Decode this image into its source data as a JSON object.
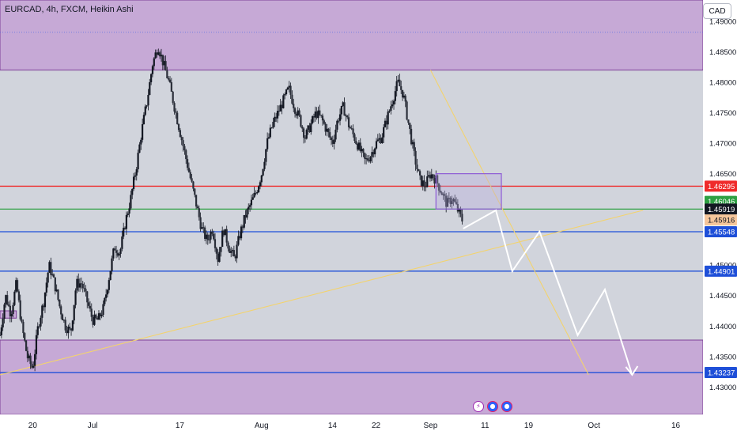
{
  "header": {
    "title": "EURCAD, 4h, FXCM, Heikin Ashi",
    "currency": "CAD"
  },
  "colors": {
    "up": "#131722",
    "down": "#131722",
    "zone_fill": "#c6a9d6",
    "zone_border": "#7e3f98",
    "background": "#d1d4dc",
    "red_line": "#ef2b2b",
    "green_line": "#2ea043",
    "blue_line": "#1e4fd8",
    "trend_line": "#f3d36e",
    "arrow": "#ffffff"
  },
  "event_icons": [
    {
      "name": "lightning-icon",
      "glyph": "⚡"
    },
    {
      "name": "flag-icon",
      "glyph": "●"
    },
    {
      "name": "flag-icon",
      "glyph": "●"
    }
  ],
  "chart_data": {
    "type": "candlestick",
    "title": "EURCAD, 4h, FXCM, Heikin Ashi",
    "ylim": [
      1.4255,
      1.4935
    ],
    "y_ticks": [
      1.43,
      1.435,
      1.44,
      1.445,
      1.45,
      1.455,
      1.46,
      1.465,
      1.47,
      1.475,
      1.48,
      1.485,
      1.49
    ],
    "y_tick_labels": [
      "1.43000",
      "1.43500",
      "1.44000",
      "1.44500",
      "1.45000",
      "1.45500",
      "1.46000",
      "1.46500",
      "1.47000",
      "1.47500",
      "1.48000",
      "1.48500",
      "1.49000"
    ],
    "x_ticks": [
      {
        "label": "20",
        "date": "2023-06-20"
      },
      {
        "label": "Jul",
        "date": "2023-07-01"
      },
      {
        "label": "17",
        "date": "2023-07-17"
      },
      {
        "label": "Aug",
        "date": "2023-08-01"
      },
      {
        "label": "14",
        "date": "2023-08-14"
      },
      {
        "label": "22",
        "date": "2023-08-22"
      },
      {
        "label": "Sep",
        "date": "2023-09-01"
      },
      {
        "label": "11",
        "date": "2023-09-11"
      },
      {
        "label": "19",
        "date": "2023-09-19"
      },
      {
        "label": "Oct",
        "date": "2023-10-01"
      },
      {
        "label": "16",
        "date": "2023-10-16"
      }
    ],
    "price_path": [
      [
        "2023-06-14",
        1.4385
      ],
      [
        "2023-06-15",
        1.445
      ],
      [
        "2023-06-16",
        1.442
      ],
      [
        "2023-06-17",
        1.447
      ],
      [
        "2023-06-18",
        1.44
      ],
      [
        "2023-06-19",
        1.435
      ],
      [
        "2023-06-20",
        1.433
      ],
      [
        "2023-06-21",
        1.44
      ],
      [
        "2023-06-22",
        1.444
      ],
      [
        "2023-06-23",
        1.45
      ],
      [
        "2023-06-24",
        1.447
      ],
      [
        "2023-06-25",
        1.443
      ],
      [
        "2023-06-26",
        1.44
      ],
      [
        "2023-06-27",
        1.439
      ],
      [
        "2023-06-28",
        1.447
      ],
      [
        "2023-06-29",
        1.447
      ],
      [
        "2023-06-30",
        1.444
      ],
      [
        "2023-07-01",
        1.441
      ],
      [
        "2023-07-02",
        1.441
      ],
      [
        "2023-07-03",
        1.443
      ],
      [
        "2023-07-04",
        1.448
      ],
      [
        "2023-07-05",
        1.453
      ],
      [
        "2023-07-06",
        1.452
      ],
      [
        "2023-07-07",
        1.457
      ],
      [
        "2023-07-08",
        1.461
      ],
      [
        "2023-07-09",
        1.466
      ],
      [
        "2023-07-10",
        1.472
      ],
      [
        "2023-07-11",
        1.477
      ],
      [
        "2023-07-12",
        1.483
      ],
      [
        "2023-07-13",
        1.486
      ],
      [
        "2023-07-14",
        1.483
      ],
      [
        "2023-07-15",
        1.48
      ],
      [
        "2023-07-16",
        1.476
      ],
      [
        "2023-07-17",
        1.472
      ],
      [
        "2023-07-18",
        1.468
      ],
      [
        "2023-07-19",
        1.464
      ],
      [
        "2023-07-20",
        1.46
      ],
      [
        "2023-07-21",
        1.456
      ],
      [
        "2023-07-22",
        1.454
      ],
      [
        "2023-07-23",
        1.456
      ],
      [
        "2023-07-24",
        1.451
      ],
      [
        "2023-07-25",
        1.456
      ],
      [
        "2023-07-26",
        1.453
      ],
      [
        "2023-07-27",
        1.451
      ],
      [
        "2023-07-28",
        1.455
      ],
      [
        "2023-07-29",
        1.458
      ],
      [
        "2023-07-30",
        1.46
      ],
      [
        "2023-07-31",
        1.462
      ],
      [
        "2023-08-01",
        1.465
      ],
      [
        "2023-08-02",
        1.47
      ],
      [
        "2023-08-03",
        1.473
      ],
      [
        "2023-08-04",
        1.475
      ],
      [
        "2023-08-05",
        1.477
      ],
      [
        "2023-08-06",
        1.479
      ],
      [
        "2023-08-07",
        1.476
      ],
      [
        "2023-08-08",
        1.474
      ],
      [
        "2023-08-09",
        1.471
      ],
      [
        "2023-08-10",
        1.473
      ],
      [
        "2023-08-11",
        1.475
      ],
      [
        "2023-08-12",
        1.474
      ],
      [
        "2023-08-13",
        1.472
      ],
      [
        "2023-08-14",
        1.47
      ],
      [
        "2023-08-15",
        1.474
      ],
      [
        "2023-08-16",
        1.476
      ],
      [
        "2023-08-17",
        1.473
      ],
      [
        "2023-08-18",
        1.471
      ],
      [
        "2023-08-19",
        1.469
      ],
      [
        "2023-08-20",
        1.467
      ],
      [
        "2023-08-21",
        1.468
      ],
      [
        "2023-08-22",
        1.47
      ],
      [
        "2023-08-23",
        1.471
      ],
      [
        "2023-08-24",
        1.474
      ],
      [
        "2023-08-25",
        1.477
      ],
      [
        "2023-08-26",
        1.48
      ],
      [
        "2023-08-27",
        1.478
      ],
      [
        "2023-08-28",
        1.473
      ],
      [
        "2023-08-29",
        1.468
      ],
      [
        "2023-08-30",
        1.464
      ],
      [
        "2023-08-31",
        1.463
      ],
      [
        "2023-09-01",
        1.465
      ],
      [
        "2023-09-02",
        1.464
      ],
      [
        "2023-09-03",
        1.462
      ],
      [
        "2023-09-04",
        1.46
      ],
      [
        "2023-09-05",
        1.461
      ],
      [
        "2023-09-06",
        1.459
      ],
      [
        "2023-09-07",
        1.457
      ]
    ],
    "zones": [
      {
        "y_from": 1.482,
        "y_to": 1.4935
      },
      {
        "y_from": 1.4255,
        "y_to": 1.4377
      },
      {
        "x_from": "2023-06-14",
        "x_to": "2023-06-17",
        "y_from": 1.4413,
        "y_to": 1.4425
      }
    ],
    "rectangle": {
      "x_from": "2023-09-02",
      "x_to": "2023-09-14",
      "y_from": 1.4592,
      "y_to": 1.465
    },
    "dotted_line": 1.4882,
    "horizontal_lines": [
      {
        "value": 1.46295,
        "label": "1.46295",
        "color": "#ef2b2b"
      },
      {
        "value": 1.45919,
        "label": "1.45919",
        "color": "#2ea043"
      },
      {
        "value": 1.45548,
        "label": "1.45548",
        "color": "#1e4fd8"
      },
      {
        "value": 1.44901,
        "label": "1.44901",
        "color": "#1e4fd8"
      },
      {
        "value": 1.43237,
        "label": "1.43237",
        "color": "#1e4fd8"
      }
    ],
    "price_labels": [
      {
        "value": 1.46046,
        "label": "1.46046",
        "color": "#2ea043"
      },
      {
        "value": 1.45919,
        "label": "1.45919",
        "color": "#131722"
      },
      {
        "value": 1.45916,
        "label": "1.45916",
        "color": "#f6c69b"
      }
    ],
    "trend_lines": [
      {
        "from": [
          "2023-06-14",
          1.432
        ],
        "to": [
          "2023-10-10",
          1.459
        ]
      },
      {
        "from": [
          "2023-09-01",
          1.482
        ],
        "to": [
          "2023-09-30",
          1.432
        ]
      }
    ],
    "projection_arrow": [
      [
        "2023-09-07",
        1.456
      ],
      [
        "2023-09-13",
        1.459
      ],
      [
        "2023-09-16",
        1.449
      ],
      [
        "2023-09-21",
        1.4555
      ],
      [
        "2023-09-28",
        1.4385
      ],
      [
        "2023-10-03",
        1.446
      ],
      [
        "2023-10-08",
        1.432
      ]
    ]
  }
}
